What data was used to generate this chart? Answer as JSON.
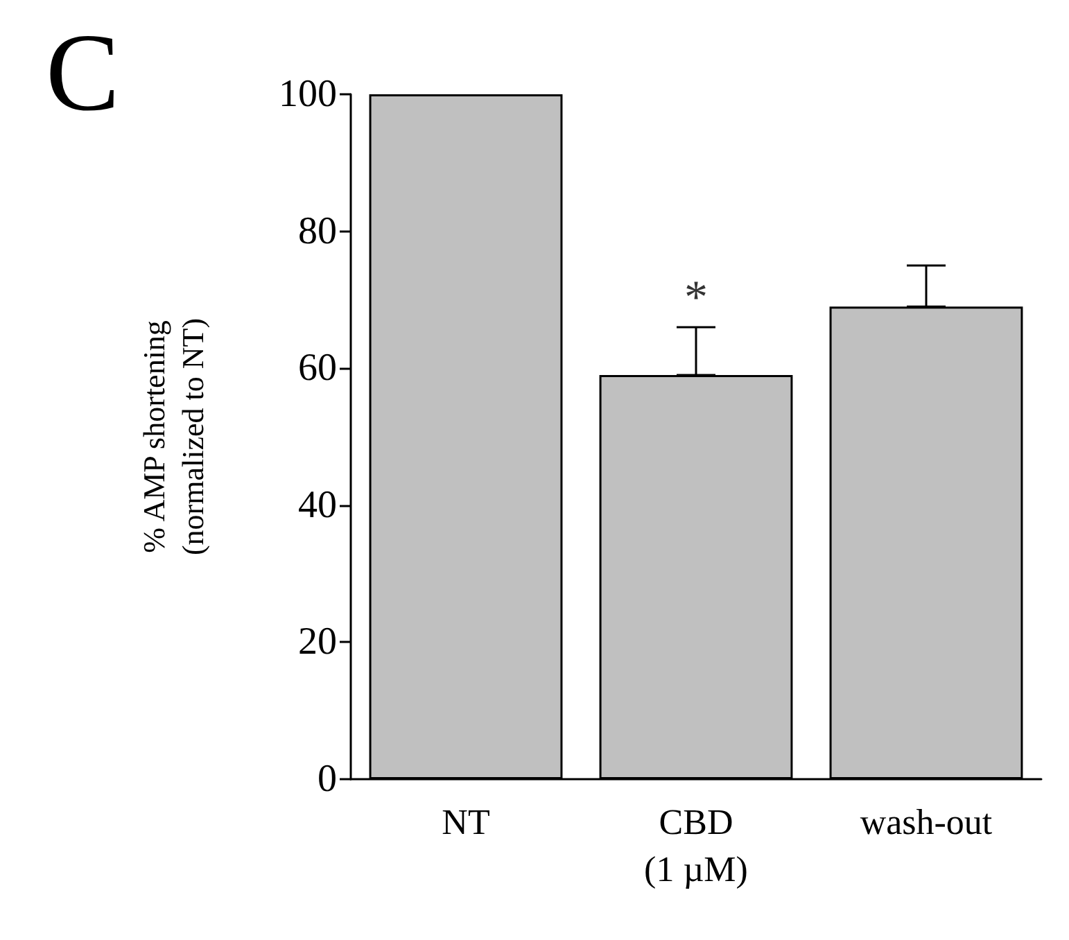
{
  "chart_data": {
    "type": "bar",
    "title": "C",
    "ylabel": "% AMP shortening\n(normalized to NT)",
    "categories": [
      "NT",
      "CBD\n(1 µM)",
      "wash-out"
    ],
    "values": [
      100,
      59,
      69
    ],
    "errors": [
      null,
      [
        59,
        66
      ],
      [
        69,
        75
      ]
    ],
    "color": "#c0c0c0",
    "ylim": [
      0,
      100
    ],
    "yticks": [
      0,
      20,
      40,
      60,
      80,
      100
    ],
    "annotations": [
      {
        "text": "*",
        "x": "CBD\n(1 µM)",
        "y": 66
      }
    ],
    "grid": false
  }
}
